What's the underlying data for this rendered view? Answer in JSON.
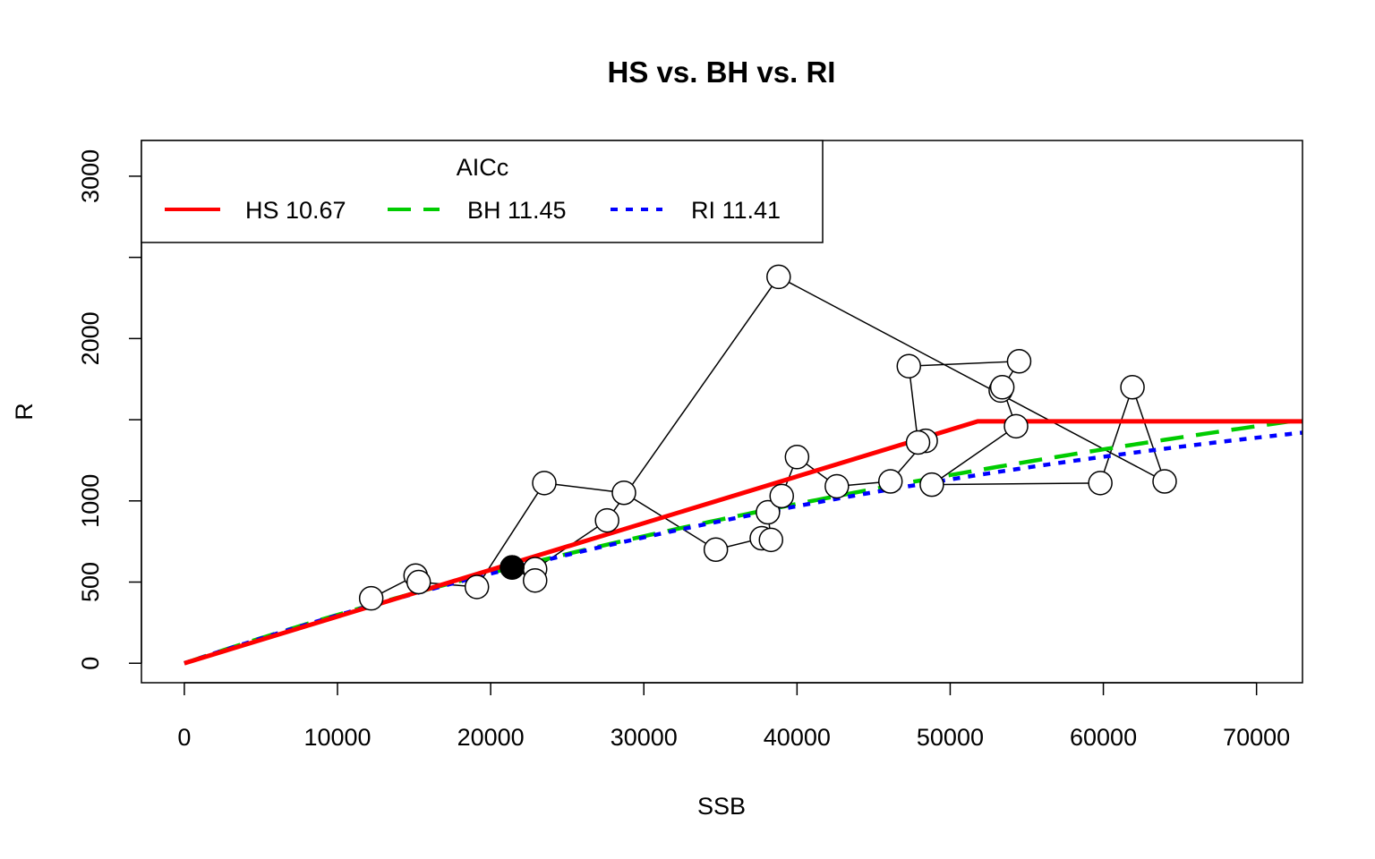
{
  "chart_data": {
    "type": "scatter",
    "title": "HS vs. BH vs. RI",
    "xlabel": "SSB",
    "ylabel": "R",
    "xlim": [
      -2800,
      73000
    ],
    "ylim": [
      -120,
      3220
    ],
    "x_ticks": [
      0,
      10000,
      20000,
      30000,
      40000,
      50000,
      60000,
      70000
    ],
    "y_ticks": [
      0,
      500,
      1000,
      1500,
      2000,
      2500,
      3000
    ],
    "y_tick_labels": [
      "0",
      "500",
      "1000",
      "",
      "2000",
      "",
      "3000"
    ],
    "grid": false,
    "legend": {
      "title": "AICc",
      "placement": "top-left",
      "entries": [
        {
          "label": "HS 10.67",
          "color": "#ff0000",
          "dash": "solid"
        },
        {
          "label": "BH 11.45",
          "color": "#00cc00",
          "dash": "dashed"
        },
        {
          "label": "RI 11.41",
          "color": "#0000ff",
          "dash": "dotted"
        }
      ]
    },
    "observations": [
      {
        "x": 12200,
        "y": 400
      },
      {
        "x": 15100,
        "y": 540
      },
      {
        "x": 15300,
        "y": 500
      },
      {
        "x": 19100,
        "y": 470
      },
      {
        "x": 23500,
        "y": 1110
      },
      {
        "x": 28700,
        "y": 1050
      },
      {
        "x": 34700,
        "y": 700
      },
      {
        "x": 37700,
        "y": 770
      },
      {
        "x": 38300,
        "y": 760
      },
      {
        "x": 38100,
        "y": 930
      },
      {
        "x": 39000,
        "y": 1030
      },
      {
        "x": 40000,
        "y": 1270
      },
      {
        "x": 42600,
        "y": 1090
      },
      {
        "x": 46100,
        "y": 1120
      },
      {
        "x": 48400,
        "y": 1370
      },
      {
        "x": 47900,
        "y": 1360
      },
      {
        "x": 47300,
        "y": 1830
      },
      {
        "x": 54500,
        "y": 1860
      },
      {
        "x": 53300,
        "y": 1680
      },
      {
        "x": 53400,
        "y": 1700
      },
      {
        "x": 54300,
        "y": 1460
      },
      {
        "x": 48800,
        "y": 1100
      },
      {
        "x": 59800,
        "y": 1110
      },
      {
        "x": 61900,
        "y": 1700
      },
      {
        "x": 64000,
        "y": 1120
      },
      {
        "x": 38800,
        "y": 2380
      },
      {
        "x": 27600,
        "y": 880
      },
      {
        "x": 22900,
        "y": 580
      },
      {
        "x": 22900,
        "y": 510
      },
      {
        "x": 21400,
        "y": 590
      }
    ],
    "highlighted_point": {
      "x": 21400,
      "y": 590
    },
    "series": [
      {
        "name": "HS 10.67",
        "type": "hockey-stick",
        "slope": 0.0277,
        "breakpoint": 51800,
        "plateau": 1490,
        "color": "#ff0000"
      },
      {
        "name": "BH 11.45",
        "type": "beverton-holt",
        "a": 0.0321,
        "b": 7.7e-06,
        "color": "#00cc00"
      },
      {
        "name": "RI 11.41",
        "type": "ricker",
        "a": 0.0315,
        "b": 6.6e-06,
        "color": "#0000ff"
      }
    ]
  }
}
